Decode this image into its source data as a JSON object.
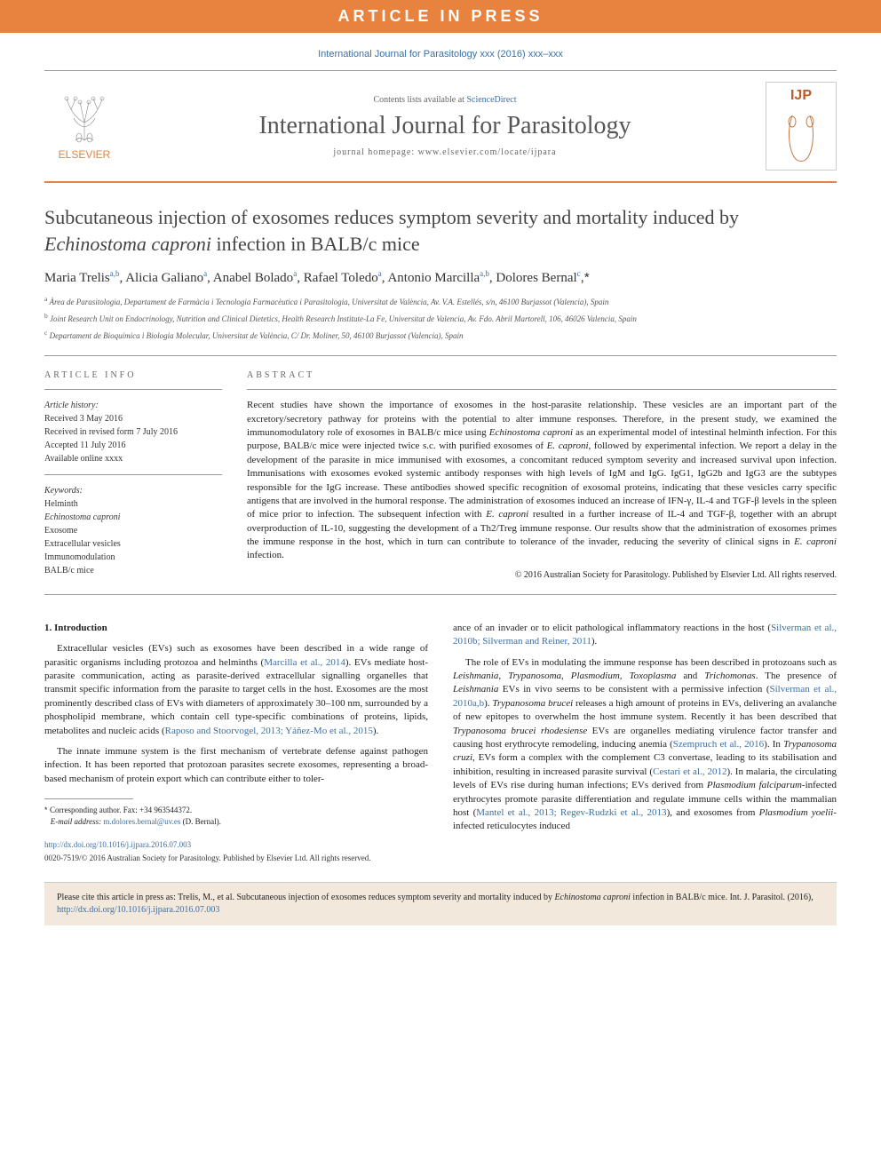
{
  "banner": "ARTICLE IN PRESS",
  "journal_ref": "International Journal for Parasitology xxx (2016) xxx–xxx",
  "header": {
    "contents_line_prefix": "Contents lists available at ",
    "contents_link": "ScienceDirect",
    "journal_name": "International Journal for Parasitology",
    "homepage_prefix": "journal homepage: ",
    "homepage_url": "www.elsevier.com/locate/ijpara",
    "elsevier_label": "ELSEVIER",
    "ijp_label": "IJP"
  },
  "title_pre": "Subcutaneous injection of exosomes reduces symptom severity and mortality induced by ",
  "title_em": "Echinostoma caproni",
  "title_post": " infection in BALB/c mice",
  "authors_list": [
    {
      "name": "Maria Trelis",
      "sup": "a,b"
    },
    {
      "name": "Alicia Galiano",
      "sup": "a"
    },
    {
      "name": "Anabel Bolado",
      "sup": "a"
    },
    {
      "name": "Rafael Toledo",
      "sup": "a"
    },
    {
      "name": "Antonio Marcilla",
      "sup": "a,b"
    },
    {
      "name": "Dolores Bernal",
      "sup": "c,*"
    }
  ],
  "affiliations": [
    {
      "sup": "a",
      "text": "Àrea de Parasitologia, Departament de Farmàcia i Tecnologia Farmacèutica i Parasitologia, Universitat de València, Av. V.A. Estellés, s/n, 46100 Burjassot (Valencia), Spain"
    },
    {
      "sup": "b",
      "text": "Joint Research Unit on Endocrinology, Nutrition and Clinical Dietetics, Health Research Institute-La Fe, Universitat de Valencia, Av. Fdo. Abril Martorell, 106, 46026 Valencia, Spain"
    },
    {
      "sup": "c",
      "text": "Departament de Bioquímica i Biologia Molecular, Universitat de València, C/ Dr. Moliner, 50, 46100 Burjassot (Valencia), Spain"
    }
  ],
  "article_info": {
    "heading": "ARTICLE INFO",
    "history_label": "Article history:",
    "history": [
      "Received 3 May 2016",
      "Received in revised form 7 July 2016",
      "Accepted 11 July 2016",
      "Available online xxxx"
    ],
    "keywords_label": "Keywords:",
    "keywords": [
      "Helminth",
      "Echinostoma caproni",
      "Exosome",
      "Extracellular vesicles",
      "Immunomodulation",
      "BALB/c mice"
    ]
  },
  "abstract": {
    "heading": "ABSTRACT",
    "text": "Recent studies have shown the importance of exosomes in the host-parasite relationship. These vesicles are an important part of the excretory/secretory pathway for proteins with the potential to alter immune responses. Therefore, in the present study, we examined the immunomodulatory role of exosomes in BALB/c mice using Echinostoma caproni as an experimental model of intestinal helminth infection. For this purpose, BALB/c mice were injected twice s.c. with purified exosomes of E. caproni, followed by experimental infection. We report a delay in the development of the parasite in mice immunised with exosomes, a concomitant reduced symptom severity and increased survival upon infection. Immunisations with exosomes evoked systemic antibody responses with high levels of IgM and IgG. IgG1, IgG2b and IgG3 are the subtypes responsible for the IgG increase. These antibodies showed specific recognition of exosomal proteins, indicating that these vesicles carry specific antigens that are involved in the humoral response. The administration of exosomes induced an increase of IFN-γ, IL-4 and TGF-β levels in the spleen of mice prior to infection. The subsequent infection with E. caproni resulted in a further increase of IL-4 and TGF-β, together with an abrupt overproduction of IL-10, suggesting the development of a Th2/Treg immune response. Our results show that the administration of exosomes primes the immune response in the host, which in turn can contribute to tolerance of the invader, reducing the severity of clinical signs in E. caproni infection.",
    "copyright": "© 2016 Australian Society for Parasitology. Published by Elsevier Ltd. All rights reserved."
  },
  "intro_heading": "1. Introduction",
  "intro_col1_p1": "Extracellular vesicles (EVs) such as exosomes have been described in a wide range of parasitic organisms including protozoa and helminths (Marcilla et al., 2014). EVs mediate host-parasite communication, acting as parasite-derived extracellular signalling organelles that transmit specific information from the parasite to target cells in the host. Exosomes are the most prominently described class of EVs with diameters of approximately 30–100 nm, surrounded by a phospholipid membrane, which contain cell type-specific combinations of proteins, lipids, metabolites and nucleic acids (Raposo and Stoorvogel, 2013; Yáñez-Mo et al., 2015).",
  "intro_col1_p2": "The innate immune system is the first mechanism of vertebrate defense against pathogen infection. It has been reported that protozoan parasites secrete exosomes, representing a broad-based mechanism of protein export which can contribute either to toler-",
  "intro_col2_p1": "ance of an invader or to elicit pathological inflammatory reactions in the host (Silverman et al., 2010b; Silverman and Reiner, 2011).",
  "intro_col2_p2": "The role of EVs in modulating the immune response has been described in protozoans such as Leishmania, Trypanosoma, Plasmodium, Toxoplasma and Trichomonas. The presence of Leishmania EVs in vivo seems to be consistent with a permissive infection (Silverman et al., 2010a,b). Trypanosoma brucei releases a high amount of proteins in EVs, delivering an avalanche of new epitopes to overwhelm the host immune system. Recently it has been described that Trypanosoma brucei rhodesiense EVs are organelles mediating virulence factor transfer and causing host erythrocyte remodeling, inducing anemia (Szempruch et al., 2016). In Trypanosoma cruzi, EVs form a complex with the complement C3 convertase, leading to its stabilisation and inhibition, resulting in increased parasite survival (Cestari et al., 2012). In malaria, the circulating levels of EVs rise during human infections; EVs derived from Plasmodium falciparum-infected erythrocytes promote parasite differentiation and regulate immune cells within the mammalian host (Mantel et al., 2013; Regev-Rudzki et al., 2013), and exosomes from Plasmodium yoelii-infected reticulocytes induced",
  "footnote": {
    "corresponding": "Corresponding author. Fax: +34 963544372.",
    "email_label": "E-mail address:",
    "email": "m.dolores.bernal@uv.es",
    "email_name": "(D. Bernal)."
  },
  "doi": "http://dx.doi.org/10.1016/j.ijpara.2016.07.003",
  "issn_line": "0020-7519/© 2016 Australian Society for Parasitology. Published by Elsevier Ltd. All rights reserved.",
  "cite_box": {
    "prefix": "Please cite this article in press as: Trelis, M., et al. Subcutaneous injection of exosomes reduces symptom severity and mortality induced by ",
    "em": "Echinostoma caproni",
    "mid": " infection in BALB/c mice. Int. J. Parasitol. (2016), ",
    "link": "http://dx.doi.org/10.1016/j.ijpara.2016.07.003"
  },
  "colors": {
    "orange": "#e8833f",
    "link_blue": "#3b6fa6",
    "beige": "#f2e9dc"
  }
}
